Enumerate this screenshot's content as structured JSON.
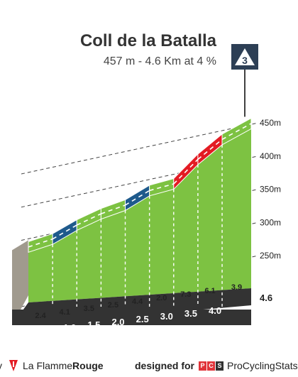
{
  "header": {
    "title": "Coll de la Batalla",
    "subtitle": "457 m - 4.6 Km at 4 %"
  },
  "category_badge": "3",
  "final_distance_label": "4.6",
  "footer": {
    "left_prefix": "y",
    "brand_main": "La Flamme",
    "brand_accent": "Rouge",
    "designed_for": "designed for",
    "pcs_letters": [
      "P",
      "C",
      "S"
    ],
    "pcs_name": "ProCyclingStats"
  },
  "colors": {
    "easy": "#7dc242",
    "moderate": "#1e5a8c",
    "hard": "#e31b23",
    "base_strip": "#333333",
    "wall": "#a09a8e",
    "badge": "#2d3f55"
  },
  "chart_data": {
    "type": "area",
    "title": "Coll de la Batalla",
    "subtitle": "457 m - 4.6 Km at 4 %",
    "x_unit": "km",
    "y_unit": "m",
    "ylim": [
      250,
      450
    ],
    "y_ticks": [
      {
        "value": 250,
        "label": "250m"
      },
      {
        "value": 300,
        "label": "300m"
      },
      {
        "value": 350,
        "label": "350m"
      },
      {
        "value": 400,
        "label": "400m"
      },
      {
        "value": 450,
        "label": "450m"
      }
    ],
    "x_ticks": [
      {
        "value": 0.5,
        "label": "0.5"
      },
      {
        "value": 1.0,
        "label": "1.0"
      },
      {
        "value": 1.5,
        "label": "1.5"
      },
      {
        "value": 2.0,
        "label": "2.0"
      },
      {
        "value": 2.5,
        "label": "2.5"
      },
      {
        "value": 3.0,
        "label": "3.0"
      },
      {
        "value": 3.5,
        "label": "3.5"
      },
      {
        "value": 4.0,
        "label": "4.0"
      }
    ],
    "segments": [
      {
        "start_km": 0.0,
        "end_km": 0.5,
        "start_alt": 271,
        "end_alt": 283,
        "gradient": 2.4,
        "label": "2.4",
        "category": "easy"
      },
      {
        "start_km": 0.5,
        "end_km": 1.0,
        "start_alt": 283,
        "end_alt": 304,
        "gradient": 4.1,
        "label": "4.1",
        "category": "moderate"
      },
      {
        "start_km": 1.0,
        "end_km": 1.5,
        "start_alt": 304,
        "end_alt": 321,
        "gradient": 3.5,
        "label": "3.5",
        "category": "easy"
      },
      {
        "start_km": 1.5,
        "end_km": 2.0,
        "start_alt": 321,
        "end_alt": 334,
        "gradient": 2.5,
        "label": "2.5",
        "category": "easy"
      },
      {
        "start_km": 2.0,
        "end_km": 2.5,
        "start_alt": 334,
        "end_alt": 356,
        "gradient": 4.4,
        "label": "4.4",
        "category": "moderate"
      },
      {
        "start_km": 2.5,
        "end_km": 3.0,
        "start_alt": 356,
        "end_alt": 366,
        "gradient": 2.0,
        "label": "2.0",
        "category": "easy"
      },
      {
        "start_km": 3.0,
        "end_km": 3.5,
        "start_alt": 366,
        "end_alt": 403,
        "gradient": 7.3,
        "label": "7.3",
        "category": "hard"
      },
      {
        "start_km": 3.5,
        "end_km": 4.0,
        "start_alt": 403,
        "end_alt": 433,
        "gradient": 6.1,
        "label": "6.1",
        "category": "hard"
      },
      {
        "start_km": 4.0,
        "end_km": 4.6,
        "start_alt": 433,
        "end_alt": 457,
        "gradient": 3.9,
        "label": "3.9",
        "category": "easy"
      }
    ]
  }
}
